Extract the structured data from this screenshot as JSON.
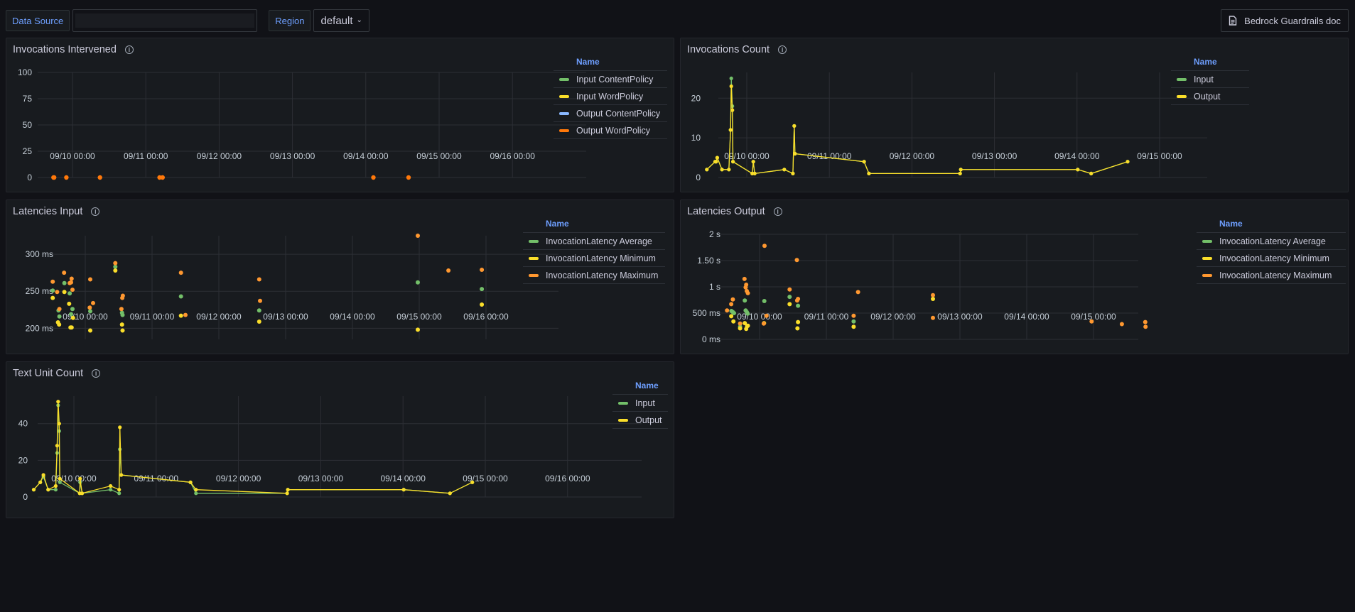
{
  "toolbar": {
    "data_source_label": "Data Source",
    "data_source_value": "",
    "region_label": "Region",
    "region_value": "default",
    "doc_button_label": "Bedrock Guardrails doc",
    "doc_icon": "document-icon"
  },
  "colors": {
    "green": "#73bf69",
    "yellow": "#fade2a",
    "blue": "#8ab8ff",
    "orange": "#ff9830",
    "orange_dark": "#ff780a",
    "legend_header": "#6e9fff"
  },
  "legend_header": "Name",
  "chart_data": [
    {
      "id": "intervened",
      "title": "Invocations Intervened",
      "type": "line",
      "x_unit": "hours since 09/10 00:00",
      "xlim": [
        -6,
        134
      ],
      "ylim": [
        0,
        100
      ],
      "yticks": [
        0,
        25,
        50,
        75,
        100
      ],
      "ytick_labels": [
        "0",
        "25",
        "50",
        "75",
        "100"
      ],
      "xticks": [
        0,
        24,
        48,
        72,
        96,
        120,
        144
      ],
      "xtick_labels": [
        "09/10 00:00",
        "09/11 00:00",
        "09/12 00:00",
        "09/13 00:00",
        "09/14 00:00",
        "09/15 00:00",
        "09/16 00:00"
      ],
      "series": [
        {
          "name": "Input ContentPolicy",
          "color": "#73bf69",
          "points": []
        },
        {
          "name": "Input WordPolicy",
          "color": "#fade2a",
          "points": []
        },
        {
          "name": "Output ContentPolicy",
          "color": "#8ab8ff",
          "points": []
        },
        {
          "name": "Output WordPolicy",
          "color": "#ff780a",
          "points": [
            [
              -6.2,
              0
            ],
            [
              -6,
              0
            ],
            [
              -2,
              0
            ],
            [
              9,
              0
            ],
            [
              28.5,
              0
            ],
            [
              29.5,
              0
            ],
            [
              98.5,
              0
            ],
            [
              110,
              0
            ]
          ]
        }
      ]
    },
    {
      "id": "count",
      "title": "Invocations Count",
      "type": "line",
      "x_unit": "hours since 09/10 00:00",
      "ylim": [
        0,
        26
      ],
      "yticks": [
        0,
        10,
        20
      ],
      "ytick_labels": [
        "0",
        "10",
        "20"
      ],
      "xticks": [
        0,
        24,
        48,
        72,
        96,
        120,
        144
      ],
      "xtick_labels": [
        "09/10 00:00",
        "09/11 00:00",
        "09/12 00:00",
        "09/13 00:00",
        "09/14 00:00",
        "09/15 00:00",
        "09/16 00:00"
      ],
      "series": [
        {
          "name": "Input",
          "color": "#73bf69",
          "points": [
            [
              -11.6,
              2
            ],
            [
              -9.2,
              4
            ],
            [
              -8.9,
              4
            ],
            [
              -8.6,
              5
            ],
            [
              -7.2,
              2
            ],
            [
              -5.2,
              2
            ],
            [
              -4.7,
              12
            ],
            [
              -4.5,
              25
            ],
            [
              -4.2,
              18
            ],
            [
              -4.0,
              4
            ],
            [
              1.6,
              1
            ],
            [
              1.9,
              4
            ],
            [
              2.3,
              1
            ],
            [
              10.9,
              2
            ],
            [
              13.4,
              1
            ],
            [
              13.8,
              13
            ],
            [
              14.0,
              6
            ],
            [
              34.1,
              4
            ],
            [
              35.5,
              1
            ],
            [
              62.0,
              1
            ],
            [
              62.2,
              2
            ],
            [
              96.2,
              2
            ],
            [
              100.1,
              1
            ],
            [
              110.7,
              4
            ]
          ]
        },
        {
          "name": "Output",
          "color": "#fade2a",
          "points": [
            [
              -11.6,
              2
            ],
            [
              -9.2,
              4
            ],
            [
              -8.9,
              4
            ],
            [
              -8.6,
              5
            ],
            [
              -7.2,
              2
            ],
            [
              -5.2,
              2
            ],
            [
              -4.7,
              12
            ],
            [
              -4.5,
              23
            ],
            [
              -4.2,
              17
            ],
            [
              -4.0,
              4
            ],
            [
              1.6,
              1
            ],
            [
              1.9,
              4
            ],
            [
              2.3,
              1
            ],
            [
              10.9,
              2
            ],
            [
              13.4,
              1
            ],
            [
              13.8,
              13
            ],
            [
              14.0,
              6
            ],
            [
              34.1,
              4
            ],
            [
              35.5,
              1
            ],
            [
              62.0,
              1
            ],
            [
              62.2,
              2
            ],
            [
              96.2,
              2
            ],
            [
              100.1,
              1
            ],
            [
              110.7,
              4
            ]
          ]
        }
      ]
    },
    {
      "id": "lat_in",
      "title": "Latencies Input",
      "type": "scatter",
      "y_unit": "ms",
      "ylim": [
        180,
        330
      ],
      "yticks": [
        200,
        250,
        300
      ],
      "ytick_labels": [
        "200 ms",
        "250 ms",
        "300 ms"
      ],
      "xticks": [
        0,
        24,
        48,
        72,
        96,
        120,
        144
      ],
      "xtick_labels": [
        "09/10 00:00",
        "09/11 00:00",
        "09/12 00:00",
        "09/13 00:00",
        "09/14 00:00",
        "09/15 00:00",
        "09/16 00:00"
      ],
      "series": [
        {
          "name": "InvocationLatency Average",
          "color": "#73bf69",
          "points": [
            [
              -11.7,
              251
            ],
            [
              -9.6,
              224
            ],
            [
              -9.3,
              216
            ],
            [
              -7.5,
              261
            ],
            [
              -5.6,
              247
            ],
            [
              -5.1,
              219
            ],
            [
              -4.6,
              226
            ],
            [
              1.8,
              223
            ],
            [
              10.8,
              283
            ],
            [
              13.2,
              221
            ],
            [
              13.4,
              218
            ],
            [
              34.4,
              243
            ],
            [
              62.5,
              224
            ],
            [
              119.5,
              262
            ],
            [
              142.5,
              253
            ]
          ]
        },
        {
          "name": "InvocationLatency Minimum",
          "color": "#fade2a",
          "points": [
            [
              -11.7,
              241
            ],
            [
              -9.8,
              208
            ],
            [
              -9.4,
              205
            ],
            [
              -7.5,
              249
            ],
            [
              -5.8,
              233
            ],
            [
              -5.3,
              201
            ],
            [
              -4.9,
              201
            ],
            [
              -4.4,
              214
            ],
            [
              1.8,
              197
            ],
            [
              10.8,
              278
            ],
            [
              13.2,
              205
            ],
            [
              13.4,
              197
            ],
            [
              34.4,
              217
            ],
            [
              62.5,
              209
            ],
            [
              119.5,
              198
            ],
            [
              142.5,
              232
            ]
          ]
        },
        {
          "name": "InvocationLatency Maximum",
          "color": "#ff9830",
          "points": [
            [
              -11.7,
              263
            ],
            [
              -10.1,
              249
            ],
            [
              -9.3,
              226
            ],
            [
              -7.6,
              275
            ],
            [
              -5.6,
              261
            ],
            [
              -5.1,
              262
            ],
            [
              -4.9,
              267
            ],
            [
              -4.6,
              252
            ],
            [
              1.8,
              266
            ],
            [
              1.6,
              228
            ],
            [
              2.8,
              234
            ],
            [
              10.8,
              288
            ],
            [
              13.0,
              226
            ],
            [
              13.3,
              241
            ],
            [
              13.5,
              244
            ],
            [
              34.4,
              275
            ],
            [
              36.0,
              218
            ],
            [
              62.5,
              266
            ],
            [
              62.8,
              237
            ],
            [
              119.5,
              325
            ],
            [
              130.5,
              278
            ],
            [
              142.5,
              279
            ]
          ]
        }
      ]
    },
    {
      "id": "lat_out",
      "title": "Latencies Output",
      "type": "scatter",
      "y_unit": "ms",
      "ylim": [
        0,
        2000
      ],
      "yticks": [
        0,
        500,
        1000,
        1500,
        2000
      ],
      "ytick_labels": [
        "0 ms",
        "500 ms",
        "1 s",
        "1.50 s",
        "2 s"
      ],
      "xticks": [
        0,
        24,
        48,
        72,
        96,
        120,
        144
      ],
      "xtick_labels": [
        "09/10 00:00",
        "09/11 00:00",
        "09/12 00:00",
        "09/13 00:00",
        "09/14 00:00",
        "09/15 00:00",
        "09/16 00:00"
      ],
      "series": [
        {
          "name": "InvocationLatency Average",
          "color": "#73bf69",
          "points": [
            [
              -10.1,
              540
            ],
            [
              -9.6,
              520
            ],
            [
              -9.2,
              500
            ],
            [
              -7.0,
              240
            ],
            [
              -5.3,
              740
            ],
            [
              -5.0,
              550
            ],
            [
              -4.6,
              520
            ],
            [
              -4.3,
              490
            ],
            [
              1.7,
              730
            ],
            [
              10.8,
              810
            ],
            [
              13.8,
              640
            ],
            [
              33.8,
              340
            ]
          ]
        },
        {
          "name": "InvocationLatency Minimum",
          "color": "#fade2a",
          "points": [
            [
              -10.2,
              440
            ],
            [
              -9.4,
              340
            ],
            [
              -7.0,
              210
            ],
            [
              -5.3,
              310
            ],
            [
              -4.8,
              200
            ],
            [
              -4.5,
              250
            ],
            [
              -4.2,
              260
            ],
            [
              1.6,
              310
            ],
            [
              10.8,
              670
            ],
            [
              13.8,
              330
            ],
            [
              13.6,
              210
            ],
            [
              33.8,
              240
            ],
            [
              62.3,
              770
            ]
          ]
        },
        {
          "name": "InvocationLatency Maximum",
          "color": "#ff9830",
          "points": [
            [
              -11.7,
              550
            ],
            [
              -10.2,
              670
            ],
            [
              -9.6,
              760
            ],
            [
              -7.0,
              300
            ],
            [
              -5.4,
              1150
            ],
            [
              -5.0,
              990
            ],
            [
              -4.8,
              1040
            ],
            [
              -4.6,
              920
            ],
            [
              -4.2,
              880
            ],
            [
              1.5,
              300
            ],
            [
              1.8,
              1780
            ],
            [
              2.5,
              450
            ],
            [
              10.8,
              950
            ],
            [
              13.4,
              1510
            ],
            [
              13.5,
              740
            ],
            [
              13.8,
              770
            ],
            [
              33.8,
              450
            ],
            [
              35.4,
              900
            ],
            [
              62.3,
              840
            ],
            [
              62.3,
              410
            ],
            [
              119.3,
              340
            ],
            [
              130.2,
              290
            ],
            [
              138.6,
              330
            ],
            [
              138.7,
              240
            ]
          ]
        }
      ]
    },
    {
      "id": "text_units",
      "title": "Text Unit Count",
      "type": "line",
      "ylim": [
        0,
        55
      ],
      "yticks": [
        0,
        20,
        40
      ],
      "ytick_labels": [
        "0",
        "20",
        "40"
      ],
      "xticks": [
        0,
        24,
        48,
        72,
        96,
        120,
        144
      ],
      "xtick_labels": [
        "09/10 00:00",
        "09/11 00:00",
        "09/12 00:00",
        "09/13 00:00",
        "09/14 00:00",
        "09/15 00:00",
        "09/16 00:00"
      ],
      "series": [
        {
          "name": "Input",
          "color": "#73bf69",
          "points": [
            [
              -11.7,
              4
            ],
            [
              -9.8,
              8
            ],
            [
              -8.9,
              11
            ],
            [
              -7.5,
              4
            ],
            [
              -5.3,
              4
            ],
            [
              -4.9,
              24
            ],
            [
              -4.6,
              50
            ],
            [
              -4.3,
              36
            ],
            [
              -4.1,
              8
            ],
            [
              1.7,
              2
            ],
            [
              1.8,
              8
            ],
            [
              2.4,
              2
            ],
            [
              10.7,
              4
            ],
            [
              13.2,
              2
            ],
            [
              13.4,
              26
            ],
            [
              13.8,
              12
            ],
            [
              34.0,
              8
            ],
            [
              35.6,
              2
            ],
            [
              62.2,
              2
            ],
            [
              62.4,
              4
            ],
            [
              96.2,
              4
            ],
            [
              109.7,
              2
            ],
            [
              116.2,
              8
            ]
          ]
        },
        {
          "name": "Output",
          "color": "#fade2a",
          "points": [
            [
              -11.7,
              4
            ],
            [
              -9.8,
              8
            ],
            [
              -8.9,
              12
            ],
            [
              -7.5,
              4
            ],
            [
              -5.3,
              6
            ],
            [
              -4.9,
              28
            ],
            [
              -4.6,
              52
            ],
            [
              -4.3,
              40
            ],
            [
              -4.1,
              10
            ],
            [
              1.7,
              2
            ],
            [
              1.8,
              10
            ],
            [
              2.4,
              2
            ],
            [
              10.7,
              6
            ],
            [
              13.2,
              4
            ],
            [
              13.4,
              38
            ],
            [
              13.8,
              12
            ],
            [
              34.0,
              8
            ],
            [
              35.6,
              4
            ],
            [
              62.2,
              2
            ],
            [
              62.4,
              4
            ],
            [
              96.2,
              4
            ],
            [
              109.7,
              2
            ],
            [
              116.2,
              8
            ]
          ]
        }
      ]
    }
  ]
}
